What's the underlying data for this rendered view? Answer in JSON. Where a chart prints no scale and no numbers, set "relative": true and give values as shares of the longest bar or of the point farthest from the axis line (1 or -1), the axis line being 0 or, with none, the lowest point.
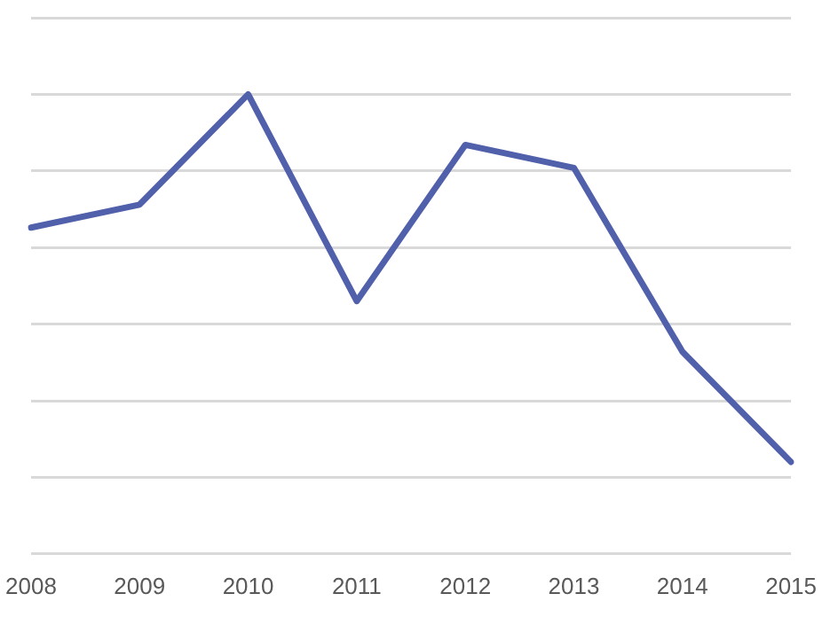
{
  "chart_data": {
    "type": "line",
    "relative": true,
    "categories": [
      "2008",
      "2009",
      "2010",
      "2011",
      "2012",
      "2013",
      "2014",
      "2015"
    ],
    "series": [
      {
        "color": "#5160ab",
        "values": [
          0.71,
          0.76,
          1,
          0.55,
          0.89,
          0.84,
          0.44,
          0.2
        ]
      }
    ],
    "grid": "y",
    "legend": false,
    "marker": "none",
    "line_style": "solid"
  }
}
